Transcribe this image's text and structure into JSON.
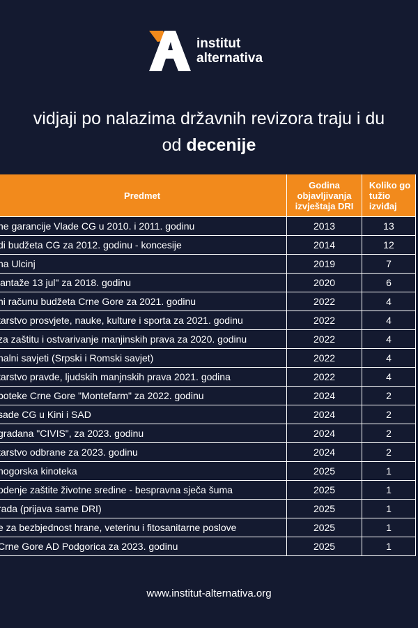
{
  "brand": {
    "line1": "institut",
    "line2": "alternativa",
    "colors": {
      "accent": "#f28a1c",
      "background": "#141a30",
      "text": "#ffffff"
    }
  },
  "headline": {
    "line1": "vidjaji po nalazima državnih revizora traju i du",
    "line2_prefix": "od ",
    "line2_bold": "decenije"
  },
  "table": {
    "headers": {
      "subject": "Predmet",
      "year": "Godina objavljivanja izvještaja DRI",
      "count": "Koliko go tužio izviđaj"
    },
    "rows": [
      {
        "subject": "ne garancije Vlade CG u 2010. i 2011. godinu",
        "year": "2013",
        "count": "13"
      },
      {
        "subject": "di budžeta CG za 2012. godinu - koncesije",
        "year": "2014",
        "count": "12"
      },
      {
        "subject": "na Ulcinj",
        "year": "2019",
        "count": "7"
      },
      {
        "subject": "lantaže 13 jul\" za 2018. godinu",
        "year": "2020",
        "count": "6"
      },
      {
        "subject": "ni računu budžeta Crne Gore za 2021. godinu",
        "year": "2022",
        "count": "4"
      },
      {
        "subject": "tarstvo prosvjete, nauke, kulture i sporta za 2021. godinu",
        "year": "2022",
        "count": "4"
      },
      {
        "subject": "za zaštitu i ostvarivanje manjinskih prava za 2020. godinu",
        "year": "2022",
        "count": "4"
      },
      {
        "subject": "nalni savjeti (Srpski i Romski savjet)",
        "year": "2022",
        "count": "4"
      },
      {
        "subject": "tarstvo pravde, ljudskih manjnskih prava 2021. godina",
        "year": "2022",
        "count": "4"
      },
      {
        "subject": "boteke Crne Gore \"Montefarm\" za 2022. godinu",
        "year": "2024",
        "count": "2"
      },
      {
        "subject": "sade CG u Kini i SAD",
        "year": "2024",
        "count": "2"
      },
      {
        "subject": "gradana \"CIVIS\", za 2023. godinu",
        "year": "2024",
        "count": "2"
      },
      {
        "subject": "tarstvo odbrane za 2023. godinu",
        "year": "2024",
        "count": "2"
      },
      {
        "subject": "nogorska kinoteka",
        "year": "2025",
        "count": "1"
      },
      {
        "subject": "odenje zaštite životne sredine - bespravna sječa šuma",
        "year": "2025",
        "count": "1"
      },
      {
        "subject": "rada (prijava same DRI)",
        "year": "2025",
        "count": "1"
      },
      {
        "subject": "e za bezbjednost hrane, veterinu i fitosanitarne poslove",
        "year": "2025",
        "count": "1"
      },
      {
        "subject": "Crne Gore AD Podgorica za 2023. godinu",
        "year": "2025",
        "count": "1"
      }
    ]
  },
  "footer": {
    "url": "www.institut-alternativa.org"
  }
}
